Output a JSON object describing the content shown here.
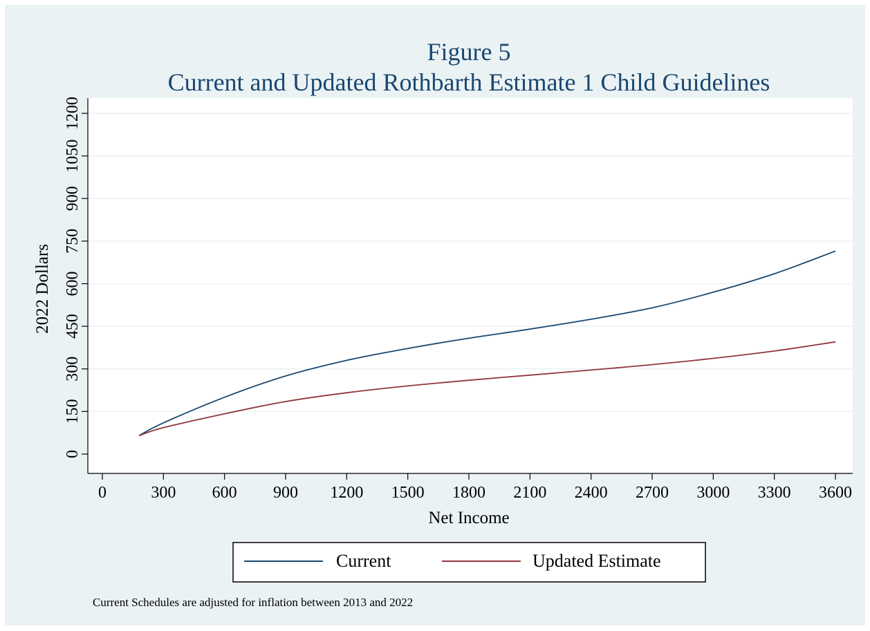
{
  "chart_data": {
    "type": "line",
    "title": "Figure 5",
    "subtitle": "Current and Updated Rothbarth Estimate 1 Child Guidelines",
    "xlabel": "Net Income",
    "ylabel": "2022 Dollars",
    "xlim": [
      0,
      3600
    ],
    "ylim": [
      0,
      1200
    ],
    "x_ticks": [
      "0",
      "300",
      "600",
      "900",
      "1200",
      "1500",
      "1800",
      "2100",
      "2400",
      "2700",
      "3000",
      "3300",
      "3600"
    ],
    "y_ticks": [
      "0",
      "150",
      "300",
      "450",
      "600",
      "750",
      "900",
      "1050",
      "1200"
    ],
    "grid": true,
    "legend_position": "bottom",
    "note": "Current Schedules are adjusted for inflation between 2013 and 2022",
    "x": [
      180,
      300,
      600,
      900,
      1200,
      1500,
      1800,
      2100,
      2400,
      2700,
      3000,
      3300,
      3600
    ],
    "series": [
      {
        "name": "Current",
        "color": "#1a476f",
        "values": [
          65,
          110,
          200,
          275,
          330,
          372,
          408,
          440,
          475,
          515,
          570,
          635,
          715
        ]
      },
      {
        "name": "Updated Estimate",
        "color": "#90353b",
        "values": [
          65,
          93,
          142,
          185,
          216,
          240,
          260,
          278,
          296,
          315,
          337,
          363,
          395
        ]
      }
    ]
  }
}
